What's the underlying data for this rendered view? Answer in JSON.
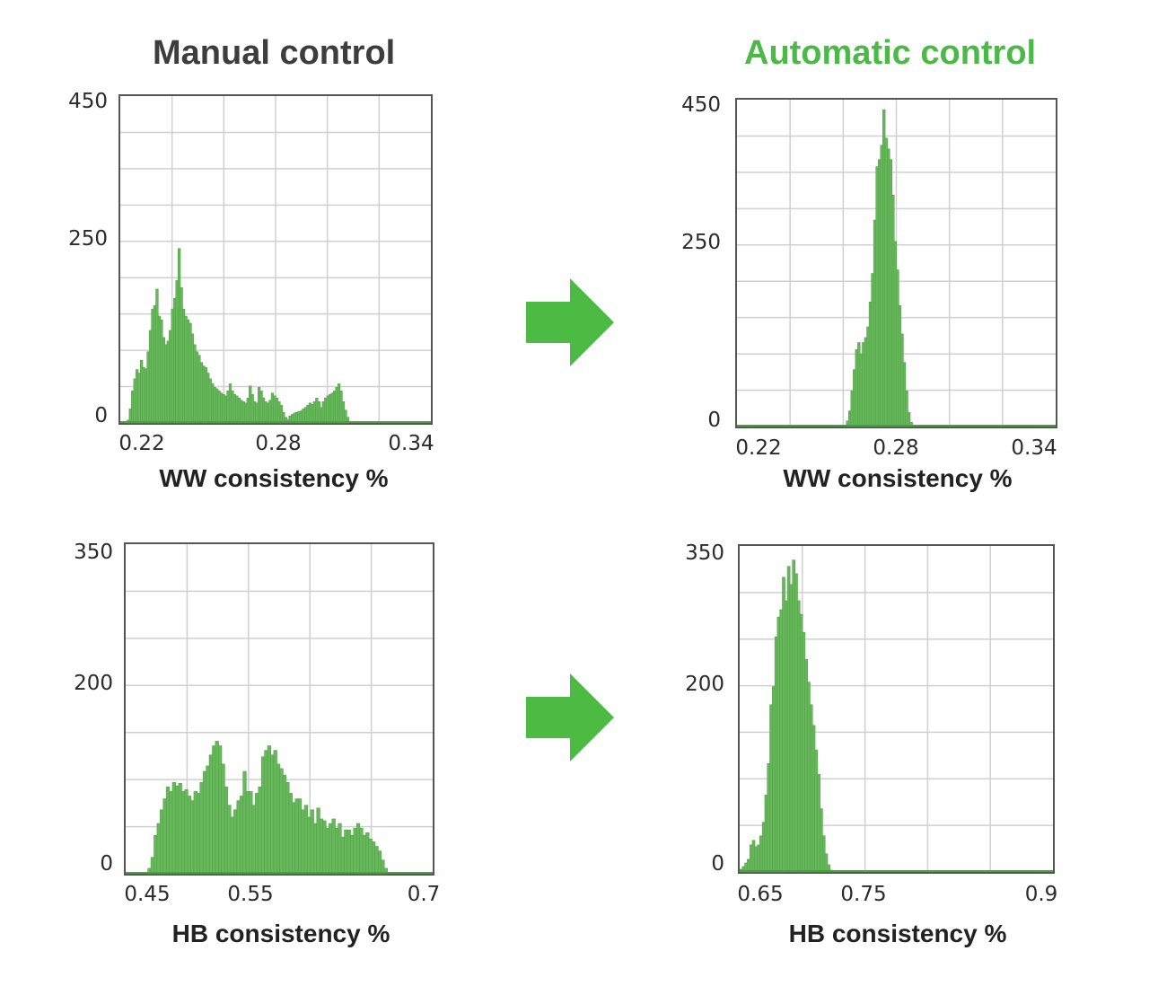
{
  "titles": {
    "left": "Manual control",
    "right": "Automatic control",
    "left_color": "#3d3d3d",
    "right_color": "#4cb848"
  },
  "colors": {
    "bar_fill": "#66b85a",
    "bar_edge": "#4e9c44",
    "grid": "#d0d0d0",
    "axis": "#555555",
    "arrow": "#4cbb44"
  },
  "arrows": [
    {
      "name": "arrow-top",
      "icon": "right-arrow-icon"
    },
    {
      "name": "arrow-bottom",
      "icon": "right-arrow-icon"
    }
  ],
  "chart_data": [
    {
      "type": "bar",
      "title": "Manual control",
      "xlabel": "WW consistency %",
      "ylabel": "",
      "xticks": [
        "0.22",
        "0.28",
        "0.34"
      ],
      "yticks": [
        "450",
        "250",
        "0"
      ],
      "xlim": [
        0.21,
        0.35
      ],
      "ylim": [
        0,
        450
      ],
      "grid": true,
      "bin_start": 0.213,
      "bin_width": 0.001,
      "values": [
        4,
        20,
        45,
        62,
        75,
        70,
        88,
        78,
        76,
        100,
        130,
        160,
        165,
        188,
        150,
        145,
        120,
        110,
        115,
        130,
        160,
        175,
        200,
        245,
        190,
        160,
        150,
        145,
        140,
        125,
        110,
        100,
        95,
        85,
        80,
        78,
        70,
        62,
        55,
        50,
        48,
        45,
        42,
        40,
        38,
        45,
        55,
        45,
        40,
        38,
        35,
        32,
        30,
        28,
        35,
        52,
        40,
        30,
        28,
        50,
        45,
        35,
        30,
        28,
        32,
        42,
        38,
        35,
        30,
        25,
        15,
        8,
        5,
        10,
        12,
        14,
        15,
        16,
        17,
        20,
        22,
        25,
        28,
        26,
        30,
        35,
        30,
        22,
        30,
        35,
        38,
        40,
        42,
        45,
        50,
        55,
        45,
        30,
        18,
        8
      ],
      "arrow_after": true
    },
    {
      "type": "bar",
      "title": "Automatic control",
      "xlabel": "WW consistency %",
      "ylabel": "",
      "xticks": [
        "0.22",
        "0.28",
        "0.34"
      ],
      "yticks": [
        "450",
        "250",
        "0"
      ],
      "xlim": [
        0.21,
        0.35
      ],
      "ylim": [
        0,
        450
      ],
      "grid": true,
      "bin_start": 0.258,
      "bin_width": 0.001,
      "values": [
        8,
        22,
        50,
        80,
        108,
        118,
        102,
        118,
        125,
        140,
        175,
        215,
        290,
        365,
        375,
        395,
        445,
        405,
        390,
        375,
        325,
        260,
        220,
        170,
        130,
        90,
        50,
        20,
        6
      ]
    },
    {
      "type": "bar",
      "title": "Manual control",
      "xlabel": "HB consistency %",
      "ylabel": "",
      "xticks": [
        "0.45",
        "0.55",
        "0.7"
      ],
      "yticks": [
        "350",
        "200",
        "0"
      ],
      "xlim": [
        0.44,
        0.69
      ],
      "ylim": [
        0,
        350
      ],
      "grid": true,
      "bin_start": 0.458,
      "bin_width": 0.0025,
      "values": [
        6,
        18,
        42,
        55,
        70,
        82,
        95,
        90,
        100,
        96,
        99,
        90,
        92,
        85,
        80,
        90,
        88,
        100,
        112,
        118,
        130,
        140,
        145,
        140,
        120,
        95,
        75,
        62,
        70,
        80,
        85,
        112,
        90,
        90,
        75,
        88,
        95,
        128,
        135,
        140,
        130,
        135,
        120,
        115,
        108,
        100,
        88,
        78,
        82,
        82,
        70,
        75,
        62,
        70,
        55,
        72,
        60,
        58,
        50,
        55,
        60,
        50,
        55,
        40,
        48,
        48,
        42,
        50,
        55,
        50,
        42,
        45,
        38,
        35,
        30,
        25,
        15,
        6
      ]
    },
    {
      "type": "bar",
      "title": "Automatic control",
      "xlabel": "HB consistency %",
      "ylabel": "",
      "xticks": [
        "0.65",
        "0.75",
        "0.9"
      ],
      "yticks": [
        "350",
        "200",
        "0"
      ],
      "xlim": [
        0.64,
        0.89
      ],
      "ylim": [
        0,
        350
      ],
      "grid": true,
      "bin_start": 0.64,
      "bin_width": 0.002,
      "values": [
        3,
        6,
        10,
        14,
        30,
        35,
        28,
        30,
        40,
        55,
        85,
        120,
        185,
        205,
        260,
        282,
        290,
        326,
        300,
        338,
        318,
        345,
        330,
        300,
        285,
        265,
        235,
        210,
        185,
        162,
        135,
        108,
        70,
        40,
        20,
        8,
        2
      ]
    }
  ]
}
